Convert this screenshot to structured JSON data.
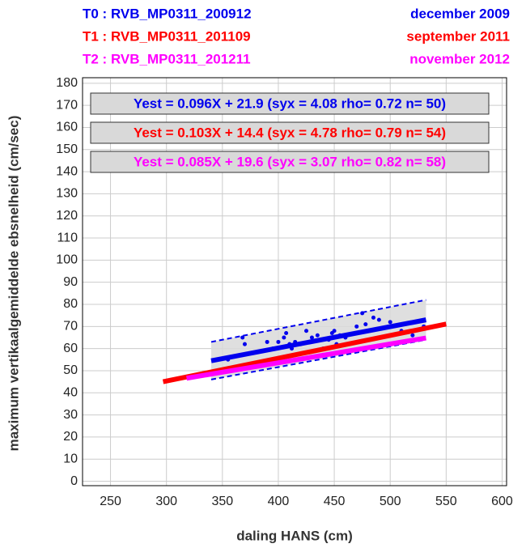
{
  "chart_data": {
    "type": "scatter",
    "xlabel": "daling HANS (cm)",
    "ylabel": "maximum vertikaalgemiddelde ebsnelheid (cm/sec)",
    "xlim": [
      225,
      604
    ],
    "ylim": [
      -2,
      182.5
    ],
    "xticks": [
      250,
      300,
      350,
      400,
      450,
      500,
      550,
      600
    ],
    "yticks": [
      0,
      10,
      20,
      30,
      40,
      50,
      60,
      70,
      80,
      90,
      100,
      110,
      120,
      130,
      140,
      150,
      160,
      170,
      180
    ],
    "grid": true,
    "series": [
      {
        "name": "T0 : RVB_MP0311_200912",
        "date": "december 2009",
        "color": "#0000ee",
        "equation": "Yest = 0.096X + 21.9 (syx = 4.08 rho= 0.72 n= 50)",
        "fit_x": [
          340,
          532
        ],
        "fit_values": [
          54.5,
          73.0
        ],
        "band_x": [
          340,
          532
        ],
        "band_upper": [
          63,
          82
        ],
        "band_lower": [
          46,
          64
        ],
        "x": [
          355,
          365,
          370,
          368,
          390,
          395,
          400,
          405,
          407,
          410,
          412,
          415,
          420,
          425,
          430,
          435,
          440,
          445,
          448,
          450,
          452,
          455,
          460,
          470,
          475,
          478,
          485,
          490,
          500,
          510,
          520,
          530
        ],
        "values": [
          55,
          57,
          62,
          65,
          63,
          60,
          63,
          65,
          67,
          62,
          60,
          63,
          62,
          68,
          65,
          66,
          60,
          64,
          67,
          68,
          62,
          66,
          65,
          70,
          76,
          71,
          74,
          73,
          72,
          68,
          66,
          70
        ]
      },
      {
        "name": "T1 : RVB_MP0311_201109",
        "date": "september 2011",
        "color": "#ff0000",
        "equation": "Yest = 0.103X + 14.4 (syx = 4.78 rho= 0.79 n= 54)",
        "fit_x": [
          297,
          550
        ],
        "fit_values": [
          45.0,
          71.1
        ]
      },
      {
        "name": "T2 : RVB_MP0311_201211",
        "date": "november 2012",
        "color": "#ff00ff",
        "equation": "Yest = 0.085X + 19.6 (syx = 3.07 rho= 0.82 n= 58)",
        "fit_x": [
          318,
          532
        ],
        "fit_values": [
          46.6,
          64.8
        ]
      }
    ]
  }
}
